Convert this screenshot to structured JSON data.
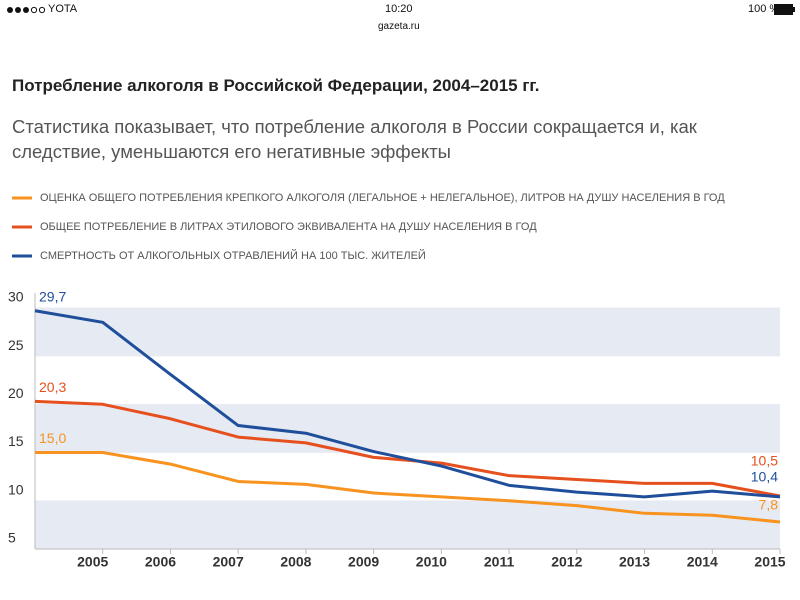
{
  "status_bar": {
    "carrier": "YOTA",
    "time": "10:20",
    "battery": "100 %",
    "url": "gazeta.ru"
  },
  "chart_data": {
    "type": "line",
    "title": "Потребление алкоголя в Российской Федерации, 2004–2015 гг.",
    "subtitle": "Статистика показывает, что потребление алкоголя в России сокращается и, как следствие, уменьшаются его негативные эффекты",
    "x": [
      2004,
      2005,
      2006,
      2007,
      2008,
      2009,
      2010,
      2011,
      2012,
      2013,
      2014,
      2015
    ],
    "xlim": [
      2004,
      2015
    ],
    "xticks": [
      2005,
      2006,
      2007,
      2008,
      2009,
      2010,
      2011,
      2012,
      2013,
      2014,
      2015
    ],
    "ylim": [
      5,
      30.5
    ],
    "yticks": [
      5,
      10,
      15,
      20,
      25,
      30
    ],
    "series": [
      {
        "name": "ОЦЕНКА ОБЩЕГО ПОТРЕБЛЕНИЯ КРЕПКОГО АЛКОГОЛЯ (ЛЕГАЛЬНОЕ + НЕЛЕГАЛЬНОЕ), ЛИТРОВ НА ДУШУ НАСЕЛЕНИЯ В ГОД",
        "color": "#f7931e",
        "values": [
          15.0,
          15.0,
          13.8,
          12.0,
          11.7,
          10.8,
          10.4,
          10.0,
          9.5,
          8.7,
          8.5,
          7.8
        ],
        "value_labels": [
          "15,0",
          null,
          null,
          null,
          null,
          null,
          null,
          null,
          null,
          null,
          null,
          "7,8"
        ]
      },
      {
        "name": "ОБЩЕЕ ПОТРЕБЛЕНИЕ В ЛИТРАХ ЭТИЛОВОГО ЭКВИВАЛЕНТА НА ДУШУ НАСЕЛЕНИЯ В ГОД",
        "color": "#e5501e",
        "values": [
          20.3,
          20.0,
          18.5,
          16.6,
          16.0,
          14.5,
          13.9,
          12.6,
          12.2,
          11.8,
          11.8,
          10.5
        ],
        "value_labels": [
          "20,3",
          null,
          null,
          null,
          null,
          null,
          null,
          null,
          null,
          null,
          null,
          "10,5"
        ]
      },
      {
        "name": "СМЕРТНОСТЬ ОТ АЛКОГОЛЬНЫХ ОТРАВЛЕНИЙ НА 100 ТЫС. ЖИТЕЛЕЙ",
        "color": "#1f4e9b",
        "values": [
          29.7,
          28.5,
          23.1,
          17.8,
          17.0,
          15.1,
          13.6,
          11.6,
          10.9,
          10.4,
          11.0,
          10.4
        ],
        "value_labels": [
          "29,7",
          null,
          null,
          null,
          null,
          null,
          null,
          null,
          null,
          null,
          null,
          "10,4"
        ]
      }
    ]
  }
}
